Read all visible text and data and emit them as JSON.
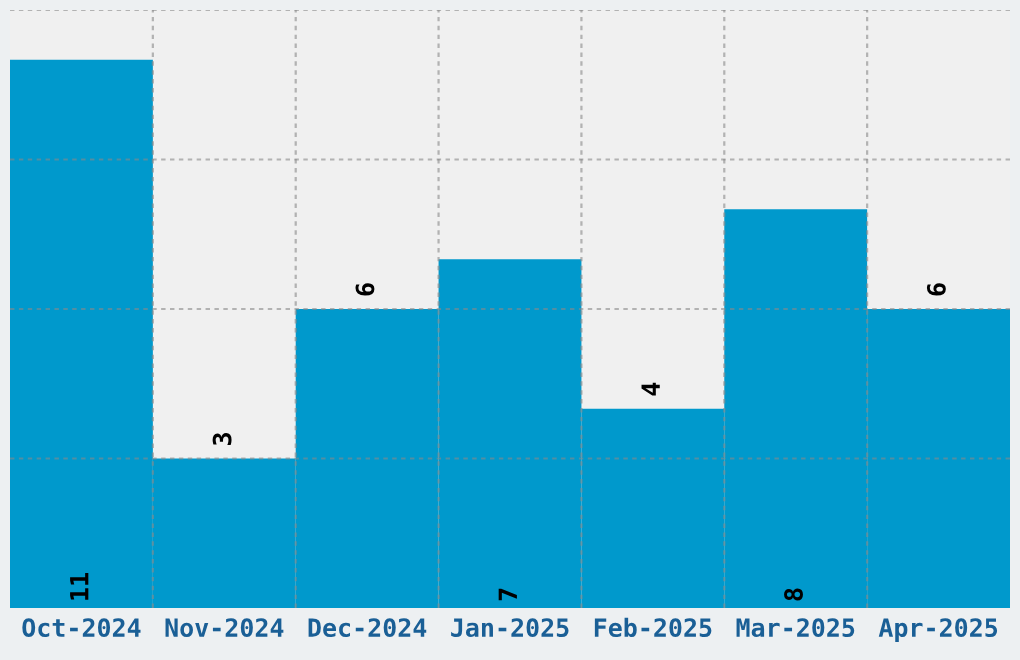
{
  "chart_data": {
    "type": "bar",
    "categories": [
      "Oct-2024",
      "Nov-2024",
      "Dec-2024",
      "Jan-2025",
      "Feb-2025",
      "Mar-2025",
      "Apr-2025"
    ],
    "values": [
      11,
      3,
      6,
      7,
      4,
      8,
      6
    ],
    "color": "#0099cc",
    "ylim": [
      0,
      12
    ],
    "yticks": [
      {
        "value": 3,
        "label": null
      },
      {
        "value": 6,
        "label": null
      },
      {
        "value": 9,
        "label": null
      },
      {
        "value": 12,
        "label": null
      }
    ],
    "tick_labels": "x",
    "grid": true,
    "data_labels": true
  }
}
